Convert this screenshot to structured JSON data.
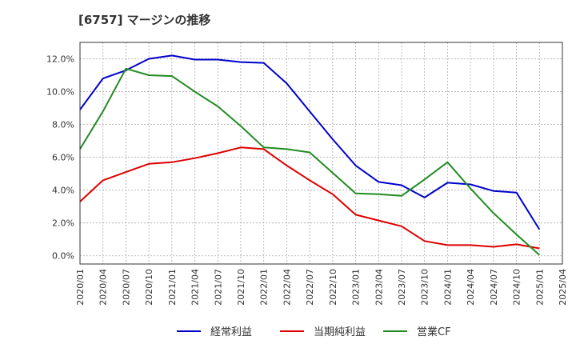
{
  "chart_data": {
    "type": "line",
    "title": "[6757]  マージンの推移",
    "xlabel": "",
    "ylabel": "",
    "x_ticks": [
      "2020/01",
      "2020/04",
      "2020/07",
      "2020/10",
      "2021/01",
      "2021/04",
      "2021/07",
      "2021/10",
      "2022/01",
      "2022/04",
      "2022/07",
      "2022/10",
      "2023/01",
      "2023/04",
      "2023/07",
      "2023/10",
      "2024/01",
      "2024/04",
      "2024/07",
      "2024/10",
      "2025/01",
      "2025/04"
    ],
    "y_ticks": [
      0,
      2,
      4,
      6,
      8,
      10,
      12
    ],
    "y_tick_labels": [
      "0.0%",
      "2.0%",
      "4.0%",
      "6.0%",
      "8.0%",
      "10.0%",
      "12.0%"
    ],
    "ylim": [
      -0.5,
      13.0
    ],
    "grid": true,
    "legend_position": "bottom",
    "series": [
      {
        "name": "経常利益",
        "color": "#0000cc",
        "values": [
          8.9,
          10.8,
          11.3,
          12.0,
          12.2,
          11.95,
          11.95,
          11.8,
          11.75,
          10.5,
          8.8,
          7.1,
          5.5,
          4.5,
          4.3,
          3.55,
          4.45,
          4.35,
          3.95,
          3.85,
          1.6
        ]
      },
      {
        "name": "当期純利益",
        "color": "#dd0000",
        "values": [
          3.3,
          4.6,
          5.1,
          5.6,
          5.7,
          5.95,
          6.25,
          6.6,
          6.5,
          5.5,
          4.6,
          3.75,
          2.5,
          2.15,
          1.8,
          0.9,
          0.65,
          0.65,
          0.55,
          0.7,
          0.45
        ]
      },
      {
        "name": "営業CF",
        "color": "#228b22",
        "values": [
          6.5,
          8.8,
          11.4,
          11.0,
          10.95,
          10.0,
          9.1,
          7.9,
          6.6,
          6.5,
          6.3,
          5.05,
          3.8,
          3.75,
          3.65,
          4.65,
          5.7,
          4.1,
          2.6,
          1.3,
          0.05
        ]
      }
    ]
  }
}
